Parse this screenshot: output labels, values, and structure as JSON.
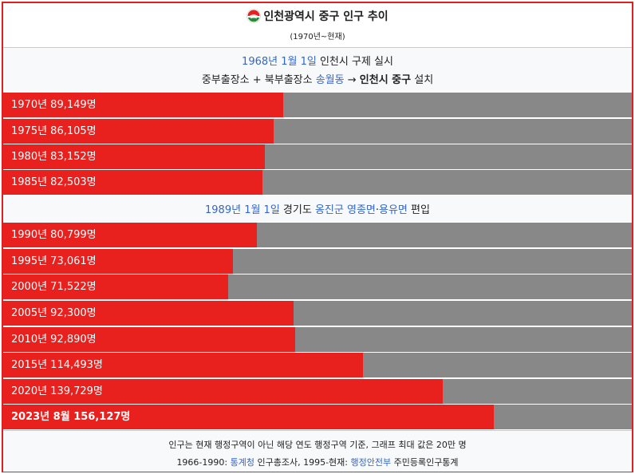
{
  "header": {
    "title": "인천광역시 중구 인구 추이",
    "subtitle": "(1970년~현재)",
    "emblem_icon": "incheon-emblem-icon"
  },
  "note1": {
    "date_link": "1968년 1월 1일",
    "text1": " 인천시 구제 실시",
    "line2_prefix": "중부출장소 + 북부출장소 ",
    "line2_link": "송월동",
    "line2_arrow": " → ",
    "line2_bold": "인천시 중구",
    "line2_suffix": " 설치"
  },
  "note2": {
    "date_link": "1989년 1월 1일",
    "mid": " 경기도 ",
    "link2": "옹진군",
    "space": " ",
    "link3": "영종면",
    "dot": "·",
    "link4": "용유면",
    "suffix": " 편입"
  },
  "chart_data": {
    "type": "bar",
    "orientation": "horizontal",
    "max_value": 200000,
    "bar_color": "#e8211e",
    "track_color": "#888888",
    "rows": [
      {
        "label": "1970년 89,149명",
        "value": 89149
      },
      {
        "label": "1975년 86,105명",
        "value": 86105
      },
      {
        "label": "1980년 83,152명",
        "value": 83152
      },
      {
        "label": "1985년 82,503명",
        "value": 82503
      },
      {
        "label": "1990년 80,799명",
        "value": 80799
      },
      {
        "label": "1995년 73,061명",
        "value": 73061
      },
      {
        "label": "2000년 71,522명",
        "value": 71522
      },
      {
        "label": "2005년 92,300명",
        "value": 92300
      },
      {
        "label": "2010년 92,890명",
        "value": 92890
      },
      {
        "label": "2015년 114,493명",
        "value": 114493
      },
      {
        "label": "2020년 139,729명",
        "value": 139729
      },
      {
        "label": "2023년 8월 156,127명",
        "value": 156127,
        "bold": true
      }
    ]
  },
  "footer": {
    "line1": "인구는 현재 행정구역이 아닌 해당 연도 행정구역 기준, 그래프 최대 값은 20만 명",
    "l2_a": "1966-1990: ",
    "l2_link1": "통계청",
    "l2_b": " 인구총조사, 1995-현재: ",
    "l2_link2": "행정안전부",
    "l2_c": " 주민등록인구통계"
  }
}
